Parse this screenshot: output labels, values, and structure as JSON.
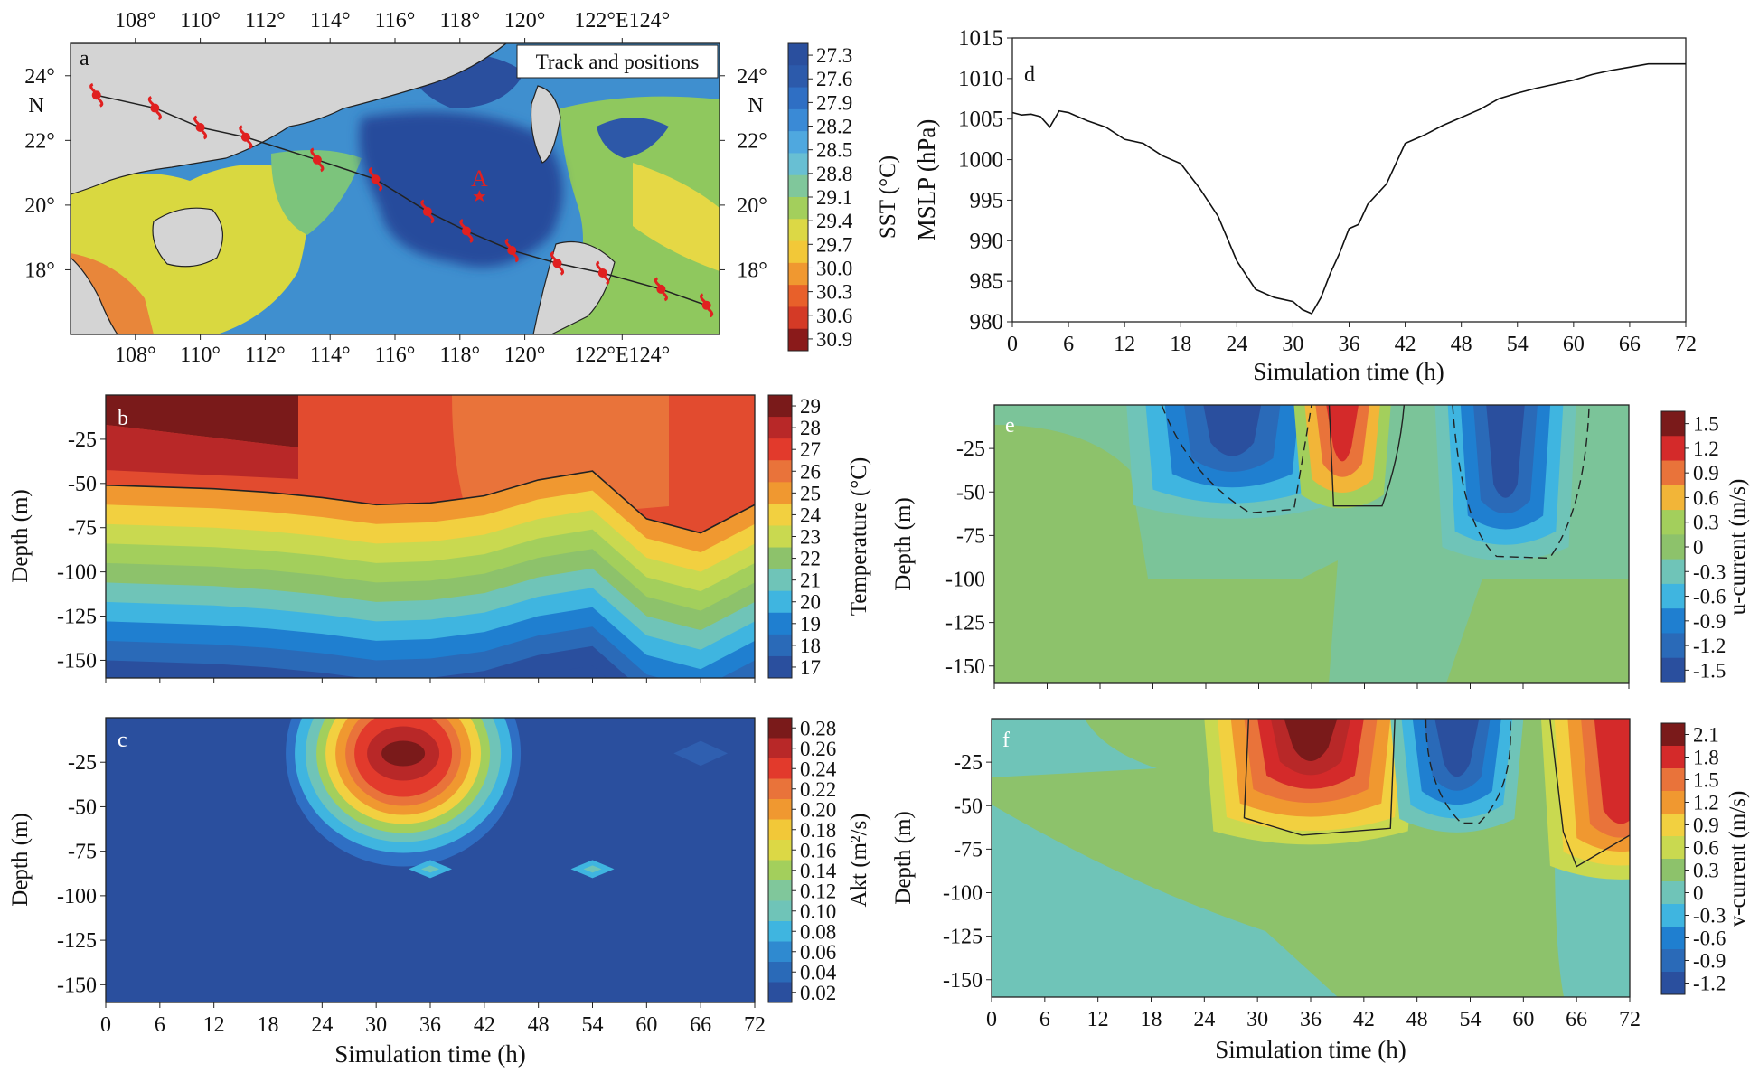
{
  "panels": {
    "a": {
      "label": "a",
      "legend_text": "Track and positions",
      "point_label": "A",
      "lon_ticks": [
        "108°",
        "110°",
        "112°",
        "114°",
        "116°",
        "118°",
        "120°",
        "122°E124°"
      ],
      "lat_ticks": [
        "24°",
        "22°",
        "20°",
        "18°"
      ],
      "lat_unit": "N",
      "colorbar": {
        "label": "SST (°C)",
        "ticks": [
          "27.3",
          "27.6",
          "27.9",
          "28.2",
          "28.5",
          "28.8",
          "29.1",
          "29.4",
          "29.7",
          "30.0",
          "30.3",
          "30.6",
          "30.9"
        ]
      }
    },
    "b": {
      "label": "b",
      "ylabel": "Depth (m)",
      "colorbar": {
        "label": "Temperature (°C)",
        "ticks": [
          "29",
          "28",
          "27",
          "26",
          "25",
          "24",
          "23",
          "22",
          "21",
          "20",
          "19",
          "18",
          "17"
        ]
      }
    },
    "c": {
      "label": "c",
      "ylabel": "Depth (m)",
      "xlabel": "Simulation time (h)",
      "colorbar": {
        "label": "Akt (m²/s)",
        "ticks": [
          "0.28",
          "0.26",
          "0.24",
          "0.22",
          "0.20",
          "0.18",
          "0.16",
          "0.14",
          "0.12",
          "0.10",
          "0.08",
          "0.06",
          "0.04",
          "0.02"
        ]
      }
    },
    "d": {
      "label": "d",
      "ylabel": "MSLP (hPa)",
      "xlabel": "Simulation time (h)"
    },
    "e": {
      "label": "e",
      "ylabel": "Depth (m)",
      "colorbar": {
        "label": "u-current (m/s)",
        "ticks": [
          "1.5",
          "1.2",
          "0.9",
          "0.6",
          "0.3",
          "0",
          "-0.3",
          "-0.6",
          "-0.9",
          "-1.2",
          "-1.5"
        ]
      }
    },
    "f": {
      "label": "f",
      "ylabel": "Depth (m)",
      "xlabel": "Simulation time (h)",
      "colorbar": {
        "label": "v-current (m/s)",
        "ticks": [
          "2.1",
          "1.8",
          "1.5",
          "1.2",
          "0.9",
          "0.6",
          "0.3",
          "0",
          "-0.3",
          "-0.6",
          "-0.9",
          "-1.2"
        ]
      }
    }
  },
  "time_ticks": [
    "0",
    "6",
    "12",
    "18",
    "24",
    "30",
    "36",
    "42",
    "48",
    "54",
    "60",
    "66",
    "72"
  ],
  "depth_ticks": [
    "-25",
    "-50",
    "-75",
    "-100",
    "-125",
    "-150"
  ],
  "colors": {
    "cold": "#2a4f9e",
    "blue": "#1f7fd0",
    "cyan": "#3fb5e0",
    "teal": "#6fc4b8",
    "green": "#8dc26b",
    "yellow": "#f2e34a",
    "orange": "#f0a030",
    "red": "#e23a2c",
    "darkred": "#7a1a1a",
    "land": "#d4d4d4",
    "track": "#e02020"
  },
  "chart_data": [
    {
      "panel": "a",
      "type": "map",
      "title": "Track and positions",
      "xlim": [
        106.0,
        126.0
      ],
      "ylim": [
        16.0,
        25.0
      ],
      "track": {
        "lon": [
          106.8,
          108.6,
          110.0,
          111.4,
          113.6,
          115.4,
          117.0,
          118.2,
          119.6,
          121.0,
          122.4,
          124.2,
          125.6
        ],
        "lat": [
          23.4,
          23.0,
          22.4,
          22.1,
          21.4,
          20.8,
          19.8,
          19.2,
          18.6,
          18.2,
          17.9,
          17.4,
          16.9
        ]
      },
      "points": [
        {
          "label": "A",
          "lon": 118.6,
          "lat": 20.3
        }
      ],
      "sst_range": [
        27.3,
        30.9
      ]
    },
    {
      "panel": "b",
      "type": "heatmap",
      "xlim": [
        0,
        72
      ],
      "ylim": [
        -160,
        0
      ],
      "clim": [
        17,
        29
      ],
      "mixed_layer_depth": {
        "x": [
          0,
          6,
          12,
          18,
          24,
          30,
          36,
          42,
          48,
          54,
          60,
          66,
          72
        ],
        "y": [
          -51,
          -52,
          -53,
          -55,
          -58,
          -62,
          -61,
          -57,
          -48,
          -43,
          -70,
          -78,
          -62
        ]
      }
    },
    {
      "panel": "c",
      "type": "heatmap",
      "xlim": [
        0,
        72
      ],
      "ylim": [
        -160,
        0
      ],
      "clim": [
        0.02,
        0.28
      ],
      "peak": {
        "x": 33,
        "y": -15,
        "value": 0.28
      },
      "secondary_peaks": [
        {
          "x": 36,
          "y": -85,
          "value": 0.08
        },
        {
          "x": 54,
          "y": -85,
          "value": 0.08
        }
      ]
    },
    {
      "panel": "d",
      "type": "line",
      "xlabel": "Simulation time (h)",
      "ylabel": "MSLP (hPa)",
      "xlim": [
        0,
        72
      ],
      "ylim": [
        980,
        1015
      ],
      "x": [
        0,
        1,
        2,
        3,
        4,
        5,
        6,
        8,
        10,
        12,
        14,
        16,
        18,
        20,
        22,
        24,
        26,
        28,
        30,
        31,
        32,
        33,
        34,
        35,
        36,
        37,
        38,
        40,
        42,
        44,
        46,
        48,
        50,
        52,
        54,
        56,
        58,
        60,
        62,
        64,
        66,
        68,
        70,
        72
      ],
      "y": [
        1005.8,
        1005.5,
        1005.6,
        1005.3,
        1004.0,
        1006.0,
        1005.8,
        1004.8,
        1004.0,
        1002.5,
        1002.0,
        1000.5,
        999.5,
        996.5,
        993.0,
        987.5,
        984.0,
        983.0,
        982.5,
        981.5,
        981.0,
        983.0,
        986.0,
        988.5,
        991.5,
        992.0,
        994.5,
        997.0,
        1002.0,
        1003.0,
        1004.2,
        1005.2,
        1006.2,
        1007.5,
        1008.2,
        1008.8,
        1009.3,
        1009.8,
        1010.5,
        1011.0,
        1011.4,
        1011.8,
        1011.8,
        1011.8
      ]
    },
    {
      "panel": "e",
      "type": "heatmap",
      "xlim": [
        0,
        72
      ],
      "ylim": [
        -160,
        0
      ],
      "clim": [
        -1.5,
        1.5
      ],
      "cores": [
        {
          "x": 29,
          "y": -20,
          "value": -1.5
        },
        {
          "x": 40,
          "y": -25,
          "value": 1.2
        },
        {
          "x": 58,
          "y": -45,
          "value": -1.5
        }
      ]
    },
    {
      "panel": "f",
      "type": "heatmap",
      "xlim": [
        0,
        72
      ],
      "ylim": [
        -160,
        0
      ],
      "clim": [
        -1.2,
        2.1
      ],
      "cores": [
        {
          "x": 37,
          "y": -10,
          "value": 2.1
        },
        {
          "x": 53,
          "y": -30,
          "value": -1.2
        },
        {
          "x": 70,
          "y": -15,
          "value": 1.8
        }
      ]
    }
  ]
}
